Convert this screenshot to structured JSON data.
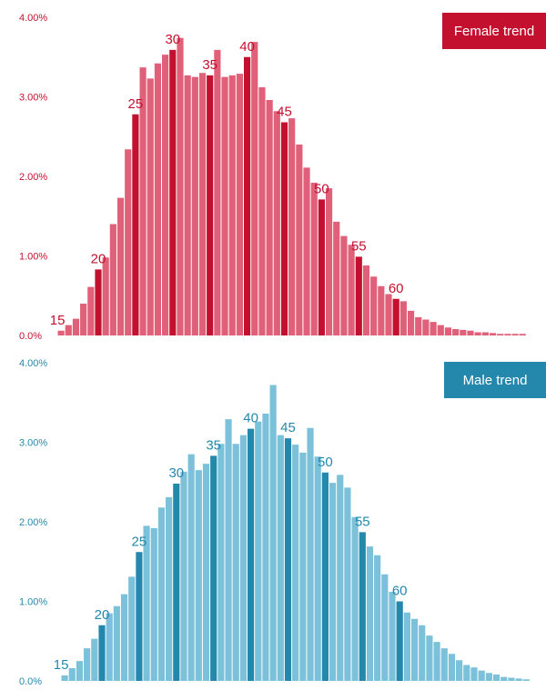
{
  "colors": {
    "female_light": "#e06079",
    "female_dark": "#c4102f",
    "male_light": "#7cc1da",
    "male_dark": "#2488ad"
  },
  "chart_data": [
    {
      "type": "bar",
      "title": "",
      "legend": "Female trend",
      "legend_placement": "top-right",
      "xlabel": "",
      "ylabel": "",
      "ylim": [
        0,
        4.0
      ],
      "yticks": [
        "0.0%",
        "1.00%",
        "2.00%",
        "3.00%",
        "4.00%"
      ],
      "categories": [
        15,
        16,
        17,
        18,
        19,
        20,
        21,
        22,
        23,
        24,
        25,
        26,
        27,
        28,
        29,
        30,
        31,
        32,
        33,
        34,
        35,
        36,
        37,
        38,
        39,
        40,
        41,
        42,
        43,
        44,
        45,
        46,
        47,
        48,
        49,
        50,
        51,
        52,
        53,
        54,
        55,
        56,
        57,
        58,
        59,
        60,
        61,
        62,
        63,
        64,
        65,
        66,
        67,
        68,
        69,
        70,
        71,
        72,
        73,
        74,
        75,
        76,
        77
      ],
      "values": [
        0.06,
        0.13,
        0.21,
        0.4,
        0.61,
        0.83,
        0.98,
        1.4,
        1.73,
        2.34,
        2.78,
        3.37,
        3.23,
        3.42,
        3.53,
        3.59,
        3.74,
        3.27,
        3.25,
        3.3,
        3.27,
        3.59,
        3.25,
        3.27,
        3.29,
        3.5,
        3.69,
        3.12,
        2.96,
        2.82,
        2.68,
        2.73,
        2.4,
        2.11,
        1.92,
        1.71,
        1.85,
        1.43,
        1.25,
        1.14,
        0.99,
        0.88,
        0.74,
        0.62,
        0.52,
        0.46,
        0.43,
        0.31,
        0.23,
        0.2,
        0.17,
        0.13,
        0.1,
        0.08,
        0.07,
        0.06,
        0.04,
        0.04,
        0.03,
        0.02,
        0.02,
        0.02,
        0.02
      ],
      "labeled": [
        {
          "age": 15,
          "label": "15"
        },
        {
          "age": 20,
          "label": "20"
        },
        {
          "age": 25,
          "label": "25"
        },
        {
          "age": 30,
          "label": "30"
        },
        {
          "age": 35,
          "label": "35"
        },
        {
          "age": 40,
          "label": "40"
        },
        {
          "age": 45,
          "label": "45"
        },
        {
          "age": 50,
          "label": "50"
        },
        {
          "age": 55,
          "label": "55"
        },
        {
          "age": 60,
          "label": "60"
        }
      ]
    },
    {
      "type": "bar",
      "title": "",
      "legend": "Male trend",
      "legend_placement": "top-right",
      "xlabel": "",
      "ylabel": "",
      "ylim": [
        0,
        4.0
      ],
      "yticks": [
        "0.0%",
        "1.00%",
        "2.00%",
        "3.00%",
        "4.00%"
      ],
      "categories": [
        15,
        16,
        17,
        18,
        19,
        20,
        21,
        22,
        23,
        24,
        25,
        26,
        27,
        28,
        29,
        30,
        31,
        32,
        33,
        34,
        35,
        36,
        37,
        38,
        39,
        40,
        41,
        42,
        43,
        44,
        45,
        46,
        47,
        48,
        49,
        50,
        51,
        52,
        53,
        54,
        55,
        56,
        57,
        58,
        59,
        60,
        61,
        62,
        63,
        64,
        65,
        66,
        67,
        68,
        69,
        70,
        71,
        72,
        73,
        74,
        75,
        76,
        77
      ],
      "values": [
        0.07,
        0.16,
        0.25,
        0.41,
        0.53,
        0.7,
        0.85,
        0.94,
        1.09,
        1.31,
        1.62,
        1.95,
        1.92,
        2.18,
        2.31,
        2.48,
        2.63,
        2.85,
        2.65,
        2.73,
        2.83,
        2.98,
        3.29,
        2.98,
        3.09,
        3.17,
        3.26,
        3.36,
        3.72,
        3.09,
        3.05,
        2.97,
        2.87,
        3.18,
        2.82,
        2.62,
        2.49,
        2.59,
        2.43,
        2.06,
        1.87,
        1.69,
        1.58,
        1.34,
        1.12,
        1.0,
        0.86,
        0.78,
        0.7,
        0.57,
        0.49,
        0.41,
        0.34,
        0.26,
        0.2,
        0.17,
        0.13,
        0.1,
        0.08,
        0.05,
        0.04,
        0.03,
        0.02
      ],
      "labeled": [
        {
          "age": 15,
          "label": "15"
        },
        {
          "age": 20,
          "label": "20"
        },
        {
          "age": 25,
          "label": "25"
        },
        {
          "age": 30,
          "label": "30"
        },
        {
          "age": 35,
          "label": "35"
        },
        {
          "age": 40,
          "label": "40"
        },
        {
          "age": 45,
          "label": "45"
        },
        {
          "age": 50,
          "label": "50"
        },
        {
          "age": 55,
          "label": "55"
        },
        {
          "age": 60,
          "label": "60"
        }
      ]
    }
  ]
}
